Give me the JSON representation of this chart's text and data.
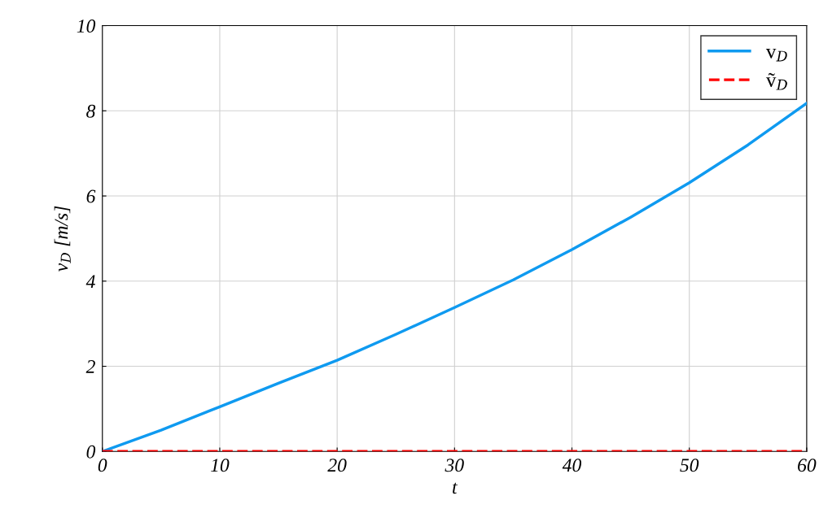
{
  "chart_data": {
    "type": "line",
    "xlabel": "t",
    "ylabel": "v$_{D}$ [m/s]",
    "x": [
      0,
      5,
      10,
      15,
      20,
      25,
      30,
      35,
      40,
      45,
      50,
      55,
      60
    ],
    "series": [
      {
        "name": "v$_{D}$",
        "color": "#0f9af0",
        "line_style": "solid",
        "values": [
          0,
          0.5,
          1.05,
          1.6,
          2.14,
          2.75,
          3.38,
          4.03,
          4.74,
          5.5,
          6.31,
          7.2,
          8.18
        ]
      },
      {
        "name": "ṽ$_{D}$",
        "color": "#ff0000",
        "line_style": "dashed",
        "values": [
          0,
          0,
          0,
          0,
          0,
          0,
          0,
          0,
          0,
          0,
          0,
          0,
          0
        ]
      }
    ],
    "xlim": [
      0,
      60
    ],
    "xticks": [
      0,
      10,
      20,
      30,
      40,
      50,
      60
    ],
    "ylim": [
      0,
      10
    ],
    "yticks": [
      0,
      2,
      4,
      6,
      8,
      10
    ],
    "grid": true,
    "legend": "top right",
    "marker": "none"
  }
}
